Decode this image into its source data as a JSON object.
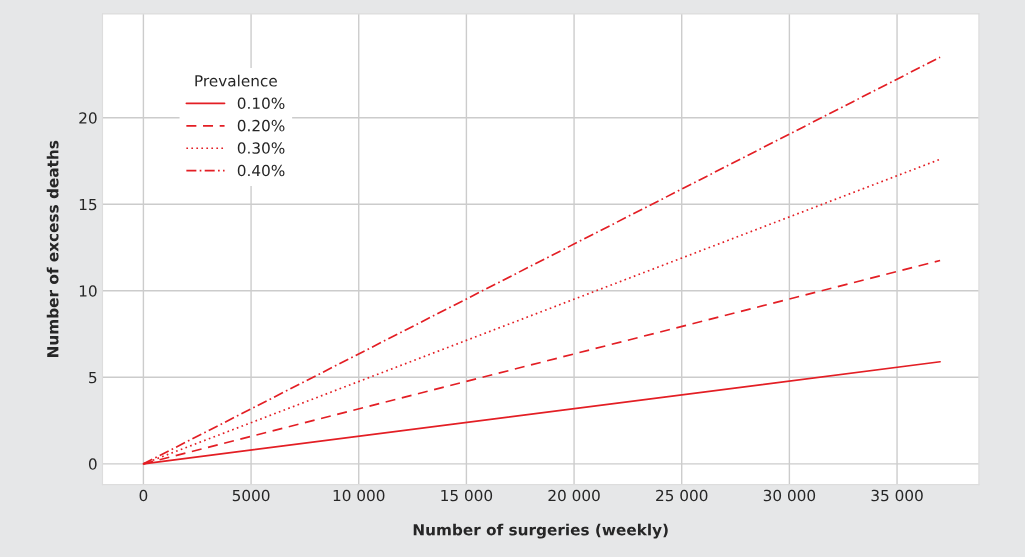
{
  "chart_data": {
    "type": "line",
    "xlabel": "Number of surgeries (weekly)",
    "ylabel": "Number of excess deaths",
    "legend_title": "Prevalence",
    "x": [
      0,
      37000
    ],
    "series": [
      {
        "name": "0.10%",
        "color": "#e31e24",
        "line_style": "solid",
        "values": [
          0,
          5.9
        ]
      },
      {
        "name": "0.20%",
        "color": "#e31e24",
        "line_style": "dashed",
        "values": [
          0,
          11.75
        ]
      },
      {
        "name": "0.30%",
        "color": "#e31e24",
        "line_style": "dotted",
        "values": [
          0,
          17.6
        ]
      },
      {
        "name": "0.40%",
        "color": "#e31e24",
        "line_style": "dashdot",
        "values": [
          0,
          23.5
        ]
      }
    ],
    "xlim": [
      -1900,
      38800
    ],
    "ylim": [
      -1.2,
      26
    ],
    "xticks": [
      0,
      5000,
      {
        "value": 10000,
        "label": "10 000"
      },
      {
        "value": 15000,
        "label": "15 000"
      },
      {
        "value": 20000,
        "label": "20 000"
      },
      {
        "value": 25000,
        "label": "25 000"
      },
      {
        "value": 30000,
        "label": "30 000"
      },
      {
        "value": 35000,
        "label": "35 000"
      }
    ],
    "yticks": [
      0,
      5,
      10,
      15,
      20
    ],
    "grid": true,
    "legend": "top left"
  }
}
